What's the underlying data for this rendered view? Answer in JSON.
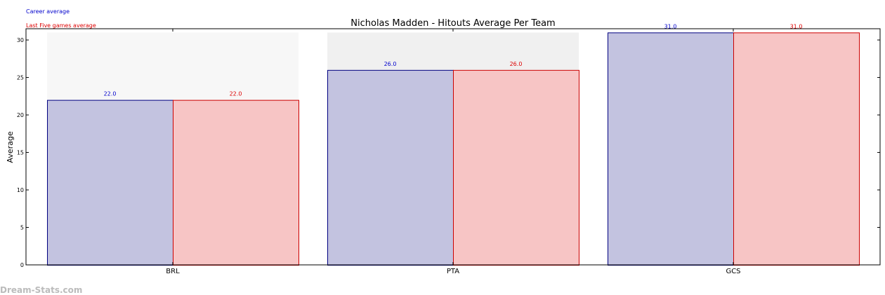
{
  "chart_data": {
    "type": "bar",
    "title": "Nicholas Madden - Hitouts Average Per Team",
    "xlabel": "",
    "ylabel": "Average",
    "categories": [
      "BRL",
      "PTA",
      "GCS"
    ],
    "series": [
      {
        "name": "Career average",
        "values": [
          22.0,
          26.0,
          31.0
        ],
        "value_labels": [
          "22.0",
          "26.0",
          "31.0"
        ],
        "color": "#c3c3e0",
        "edge_color": "#000080",
        "label_color": "#0000cc"
      },
      {
        "name": "Last Five games average",
        "values": [
          22.0,
          26.0,
          31.0
        ],
        "value_labels": [
          "22.0",
          "26.0",
          "31.0"
        ],
        "color": "#f7c5c5",
        "edge_color": "#cc0000",
        "label_color": "#dd0000"
      }
    ],
    "background_values": [
      31.0,
      31.0
    ],
    "background_colors": [
      "#f7f7f7",
      "#f0f0f0"
    ],
    "ylim": [
      0,
      31.5
    ],
    "yticks": [
      "0",
      "5",
      "10",
      "15",
      "20",
      "25",
      "30"
    ],
    "grid": false,
    "legend_position": "top-left"
  },
  "legend": {
    "career": "Career average",
    "last_five": "Last Five games average"
  },
  "watermark": "Dream-Stats.com"
}
